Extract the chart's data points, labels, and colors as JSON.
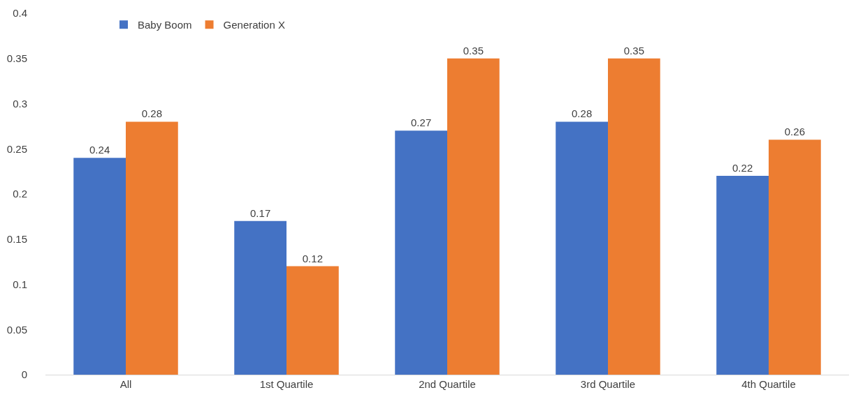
{
  "chart_data": {
    "type": "bar",
    "categories": [
      "All",
      "1st Quartile",
      "2nd Quartile",
      "3rd Quartile",
      "4th Quartile"
    ],
    "series": [
      {
        "name": "Baby Boom",
        "color": "#4472c4",
        "values": [
          0.24,
          0.17,
          0.27,
          0.28,
          0.22
        ]
      },
      {
        "name": "Generation X",
        "color": "#ed7d31",
        "values": [
          0.28,
          0.12,
          0.35,
          0.35,
          0.26
        ]
      }
    ],
    "ylim": [
      0,
      0.4
    ],
    "yticks": [
      0,
      0.05,
      0.1,
      0.15,
      0.2,
      0.25,
      0.3,
      0.35,
      0.4
    ],
    "data_labels": true,
    "grid": false,
    "legend": "top left"
  }
}
